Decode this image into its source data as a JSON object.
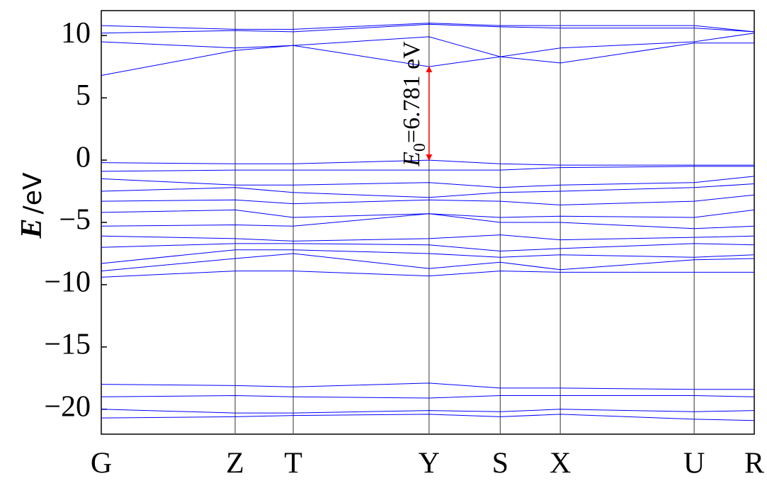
{
  "chart_data": {
    "type": "line",
    "ylabel_symbol": "E",
    "ylabel": "/eV",
    "x": [
      0,
      0.205,
      0.294,
      0.502,
      0.611,
      0.703,
      0.908,
      1.0
    ],
    "xlim": [
      0,
      1.0
    ],
    "xticks": [
      {
        "value": 0,
        "label": "G"
      },
      {
        "value": 0.205,
        "label": "Z"
      },
      {
        "value": 0.294,
        "label": "T"
      },
      {
        "value": 0.502,
        "label": "Y"
      },
      {
        "value": 0.611,
        "label": "S"
      },
      {
        "value": 0.703,
        "label": "X"
      },
      {
        "value": 0.908,
        "label": "U"
      },
      {
        "value": 1.0,
        "label": "R"
      }
    ],
    "ylim": [
      -22,
      12
    ],
    "yticks": [
      {
        "value": 10,
        "label": "10"
      },
      {
        "value": 5,
        "label": "5"
      },
      {
        "value": 0,
        "label": "0"
      },
      {
        "value": -5,
        "label": "−5"
      },
      {
        "value": -10,
        "label": "−10"
      },
      {
        "value": -15,
        "label": "−15"
      },
      {
        "value": -20,
        "label": "−20"
      }
    ],
    "color": "#0000ff",
    "annotation": {
      "symbol": "E",
      "subscript": "0",
      "text": "=6.781 eV",
      "color": "#ff0000"
    },
    "series": [
      {
        "values": [
          6.8,
          8.8,
          9.2,
          7.5,
          8.3,
          7.8,
          9.4,
          9.4
        ]
      },
      {
        "values": [
          9.5,
          9.0,
          9.2,
          9.9,
          8.3,
          9.0,
          9.5,
          10.2
        ]
      },
      {
        "values": [
          10.2,
          10.4,
          10.3,
          10.9,
          10.7,
          10.6,
          10.6,
          10.3
        ]
      },
      {
        "values": [
          10.8,
          10.5,
          10.5,
          11.0,
          10.8,
          10.8,
          10.8,
          10.3
        ]
      },
      {
        "values": [
          -0.2,
          -0.3,
          -0.3,
          0,
          -0.3,
          -0.4,
          -0.4,
          -0.4
        ]
      },
      {
        "values": [
          -0.9,
          -0.8,
          -0.8,
          -0.8,
          -0.8,
          -0.6,
          -0.5,
          -0.5
        ]
      },
      {
        "values": [
          -1.5,
          -2.0,
          -2.0,
          -1.8,
          -2.2,
          -2.0,
          -1.8,
          -1.3
        ]
      },
      {
        "values": [
          -2.5,
          -2.2,
          -2.6,
          -3.0,
          -2.6,
          -2.5,
          -2.2,
          -1.9
        ]
      },
      {
        "values": [
          -3.3,
          -3.2,
          -3.5,
          -3.2,
          -3.3,
          -3.6,
          -3.3,
          -2.8
        ]
      },
      {
        "values": [
          -4.2,
          -4.0,
          -4.6,
          -4.3,
          -4.6,
          -4.5,
          -4.6,
          -4.0
        ]
      },
      {
        "values": [
          -5.3,
          -5.2,
          -5.3,
          -4.3,
          -5.0,
          -5.0,
          -5.5,
          -5.3
        ]
      },
      {
        "values": [
          -6.1,
          -6.3,
          -6.5,
          -6.3,
          -6.0,
          -6.4,
          -6.2,
          -6.1
        ]
      },
      {
        "values": [
          -7.0,
          -6.7,
          -6.7,
          -6.8,
          -7.3,
          -7.1,
          -6.7,
          -6.8
        ]
      },
      {
        "values": [
          -8.3,
          -7.2,
          -7.2,
          -7.5,
          -7.8,
          -7.6,
          -7.8,
          -7.6
        ]
      },
      {
        "values": [
          -8.9,
          -7.9,
          -7.5,
          -8.7,
          -8.2,
          -8.8,
          -8.0,
          -7.9
        ]
      },
      {
        "values": [
          -9.4,
          -8.9,
          -8.9,
          -9.3,
          -8.9,
          -9.0,
          -9.0,
          -9.0
        ]
      },
      {
        "values": [
          -18.0,
          -18.1,
          -18.2,
          -17.9,
          -18.3,
          -18.3,
          -18.4,
          -18.4
        ]
      },
      {
        "values": [
          -19.0,
          -18.9,
          -19.0,
          -19.1,
          -18.9,
          -18.9,
          -18.9,
          -19.0
        ]
      },
      {
        "values": [
          -20.0,
          -20.3,
          -20.3,
          -20.1,
          -20.2,
          -20.0,
          -20.2,
          -20.1
        ]
      },
      {
        "values": [
          -20.7,
          -20.6,
          -20.5,
          -20.4,
          -20.6,
          -20.4,
          -20.8,
          -20.9
        ]
      }
    ]
  }
}
